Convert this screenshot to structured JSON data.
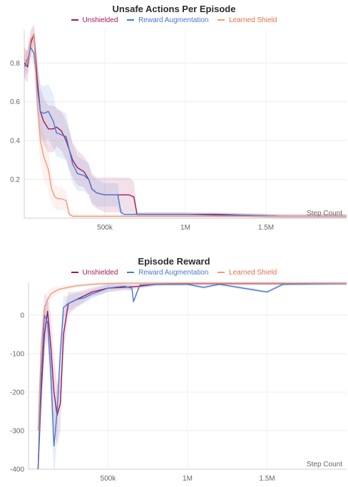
{
  "chart_data": [
    {
      "type": "line",
      "title": "Unsafe Actions Per Episode",
      "xlabel": "Step Count",
      "ylabel": "",
      "xlim": [
        0,
        2000000
      ],
      "ylim": [
        0,
        0.97
      ],
      "xticks": [
        {
          "v": 500000,
          "label": "500k"
        },
        {
          "v": 1000000,
          "label": "1M"
        },
        {
          "v": 1500000,
          "label": "1.5M"
        }
      ],
      "yticks": [
        {
          "v": 0.8,
          "label": "0.8"
        },
        {
          "v": 0.6,
          "label": "0.6"
        },
        {
          "v": 0.4,
          "label": "0.4"
        },
        {
          "v": 0.2,
          "label": "0.2"
        }
      ],
      "grid": true,
      "legend": "top-center",
      "series": [
        {
          "name": "Unshielded",
          "color": "#9c1b5a",
          "x": [
            0,
            20000,
            40000,
            60000,
            80000,
            100000,
            120000,
            150000,
            180000,
            200000,
            230000,
            260000,
            280000,
            300000,
            330000,
            370000,
            400000,
            420000,
            450000,
            500000,
            550000,
            600000,
            650000,
            680000,
            700000,
            720000,
            800000,
            1000000,
            1200000,
            1400000,
            1600000,
            1800000,
            2000000
          ],
          "y": [
            0.8,
            0.78,
            0.9,
            0.95,
            0.72,
            0.55,
            0.5,
            0.46,
            0.46,
            0.47,
            0.45,
            0.4,
            0.35,
            0.3,
            0.26,
            0.24,
            0.2,
            0.15,
            0.13,
            0.12,
            0.12,
            0.12,
            0.12,
            0.11,
            0.02,
            0.02,
            0.02,
            0.02,
            0.02,
            0.015,
            0.01,
            0.01,
            0.01
          ],
          "band": [
            0.08,
            0.08,
            0.07,
            0.05,
            0.12,
            0.12,
            0.12,
            0.12,
            0.12,
            0.1,
            0.1,
            0.1,
            0.1,
            0.09,
            0.09,
            0.08,
            0.08,
            0.08,
            0.08,
            0.09,
            0.09,
            0.09,
            0.09,
            0.08,
            0.01,
            0.01,
            0.01,
            0.01,
            0.01,
            0.01,
            0.01,
            0.01,
            0.01
          ]
        },
        {
          "name": "Reward Augmentation",
          "color": "#4a78cf",
          "x": [
            0,
            20000,
            40000,
            60000,
            80000,
            100000,
            120000,
            150000,
            180000,
            200000,
            230000,
            260000,
            280000,
            300000,
            330000,
            370000,
            400000,
            420000,
            450000,
            500000,
            550000,
            580000,
            600000,
            620000,
            650000,
            700000,
            800000,
            1000000,
            1200000,
            1400000,
            1600000,
            1800000,
            2000000
          ],
          "y": [
            0.78,
            0.82,
            0.88,
            0.85,
            0.68,
            0.55,
            0.54,
            0.55,
            0.5,
            0.44,
            0.43,
            0.42,
            0.35,
            0.28,
            0.23,
            0.22,
            0.2,
            0.15,
            0.13,
            0.12,
            0.12,
            0.12,
            0.03,
            0.02,
            0.02,
            0.02,
            0.02,
            0.02,
            0.015,
            0.015,
            0.01,
            0.01,
            0.01
          ],
          "band": [
            0.06,
            0.06,
            0.05,
            0.06,
            0.12,
            0.14,
            0.14,
            0.14,
            0.14,
            0.12,
            0.12,
            0.12,
            0.11,
            0.1,
            0.09,
            0.08,
            0.08,
            0.07,
            0.07,
            0.06,
            0.06,
            0.06,
            0.02,
            0.01,
            0.01,
            0.01,
            0.01,
            0.01,
            0.01,
            0.01,
            0.01,
            0.01,
            0.01
          ]
        },
        {
          "name": "Learned Shield",
          "color": "#ee9b80",
          "x": [
            0,
            20000,
            40000,
            60000,
            80000,
            100000,
            120000,
            150000,
            170000,
            190000,
            210000,
            230000,
            260000,
            280000,
            300000,
            350000,
            400000,
            500000,
            700000,
            1000000,
            1500000,
            2000000
          ],
          "y": [
            0.82,
            0.8,
            0.92,
            0.95,
            0.6,
            0.4,
            0.32,
            0.25,
            0.15,
            0.11,
            0.1,
            0.1,
            0.09,
            0.02,
            0.01,
            0.01,
            0.01,
            0.01,
            0.01,
            0.01,
            0.01,
            0.01
          ],
          "band": [
            0.06,
            0.06,
            0.04,
            0.04,
            0.12,
            0.12,
            0.12,
            0.1,
            0.08,
            0.06,
            0.06,
            0.06,
            0.05,
            0.01,
            0.01,
            0.01,
            0.01,
            0.01,
            0.01,
            0.01,
            0.01,
            0.01
          ]
        }
      ]
    },
    {
      "type": "line",
      "title": "Episode Reward",
      "xlabel": "Step Count",
      "ylabel": "",
      "xlim": [
        0,
        2000000
      ],
      "ylim": [
        -400,
        85
      ],
      "xticks": [
        {
          "v": 500000,
          "label": "500k"
        },
        {
          "v": 1000000,
          "label": "1M"
        },
        {
          "v": 1500000,
          "label": "1.5M"
        }
      ],
      "yticks": [
        {
          "v": 0,
          "label": "0"
        },
        {
          "v": -100,
          "label": "-100"
        },
        {
          "v": -200,
          "label": "-200"
        },
        {
          "v": -300,
          "label": "-300"
        },
        {
          "v": -400,
          "label": "-400"
        }
      ],
      "grid": true,
      "legend": "top-center",
      "series": [
        {
          "name": "Unshielded",
          "color": "#9c1b5a",
          "x": [
            60000,
            80000,
            100000,
            120000,
            140000,
            160000,
            180000,
            200000,
            220000,
            250000,
            300000,
            350000,
            400000,
            500000,
            600000,
            700000,
            800000,
            1000000,
            1500000,
            2000000
          ],
          "y": [
            -400,
            -200,
            -50,
            10,
            -80,
            -200,
            -260,
            -230,
            -50,
            30,
            40,
            50,
            60,
            70,
            72,
            75,
            80,
            82,
            82,
            82
          ],
          "band": [
            40,
            60,
            60,
            40,
            80,
            90,
            80,
            70,
            50,
            30,
            20,
            15,
            12,
            10,
            8,
            6,
            4,
            4,
            4,
            4
          ]
        },
        {
          "name": "Reward Augmentation",
          "color": "#4a78cf",
          "x": [
            60000,
            80000,
            100000,
            120000,
            140000,
            160000,
            180000,
            200000,
            220000,
            250000,
            300000,
            350000,
            400000,
            500000,
            600000,
            650000,
            660000,
            700000,
            800000,
            1000000,
            1100000,
            1200000,
            1500000,
            1600000,
            2000000
          ],
          "y": [
            -400,
            -150,
            0,
            -20,
            -150,
            -340,
            -250,
            -100,
            20,
            30,
            40,
            45,
            55,
            70,
            75,
            70,
            35,
            78,
            80,
            80,
            72,
            80,
            60,
            80,
            82
          ],
          "band": [
            40,
            60,
            60,
            60,
            80,
            90,
            70,
            50,
            30,
            20,
            18,
            15,
            12,
            10,
            8,
            8,
            8,
            6,
            5,
            4,
            4,
            4,
            4,
            4,
            4
          ]
        },
        {
          "name": "Learned Shield",
          "color": "#ee9b80",
          "x": [
            60000,
            80000,
            100000,
            120000,
            140000,
            160000,
            180000,
            200000,
            250000,
            300000,
            400000,
            500000,
            600000,
            800000,
            1000000,
            1500000,
            2000000
          ],
          "y": [
            -300,
            -80,
            20,
            40,
            55,
            60,
            65,
            68,
            72,
            76,
            80,
            82,
            83,
            83,
            83,
            83,
            83
          ],
          "band": [
            60,
            50,
            30,
            20,
            15,
            12,
            10,
            8,
            6,
            5,
            4,
            4,
            3,
            3,
            3,
            3,
            3
          ]
        }
      ]
    }
  ]
}
